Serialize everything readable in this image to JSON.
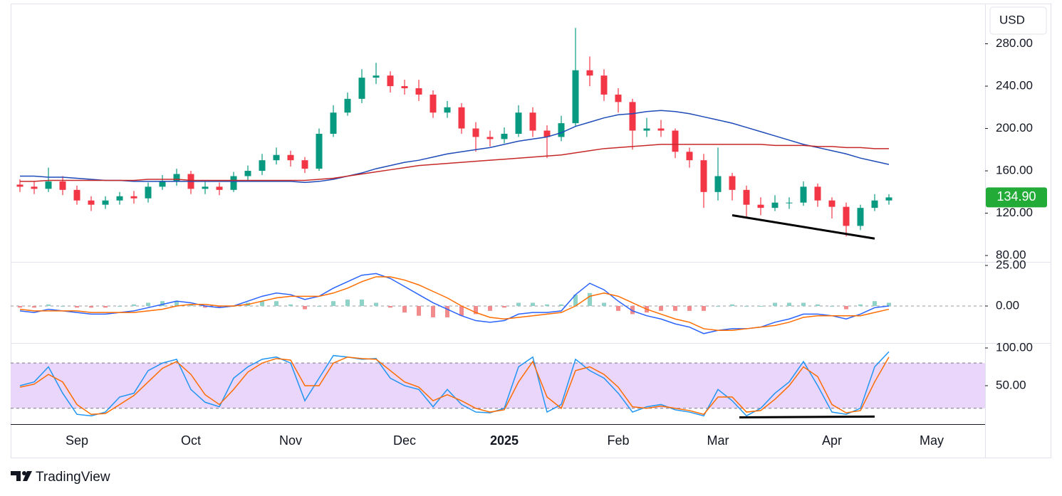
{
  "chart_data": [
    {
      "type": "candlestick",
      "currency": "USD",
      "categories": [
        null,
        null,
        null,
        null,
        null,
        "Sep",
        null,
        null,
        null,
        null,
        null,
        null,
        null,
        "Oct",
        null,
        null,
        null,
        null,
        null,
        null,
        "Nov",
        null,
        null,
        null,
        null,
        null,
        null,
        null,
        "Dec",
        null,
        null,
        null,
        null,
        null,
        null,
        "2025",
        null,
        null,
        null,
        null,
        null,
        null,
        null,
        "Feb",
        null,
        null,
        null,
        null,
        null,
        null,
        "Mar",
        null,
        null,
        null,
        null,
        null,
        null,
        null,
        "Apr",
        null,
        null,
        null,
        null,
        null,
        null,
        "May",
        null,
        null,
        null
      ],
      "open": [
        null,
        147,
        145,
        143,
        150,
        142,
        132,
        128,
        132,
        136,
        134,
        145,
        150,
        157,
        143,
        145,
        142,
        155,
        160,
        170,
        175,
        170,
        162,
        195,
        215,
        228,
        248,
        250,
        240,
        238,
        232,
        215,
        220,
        200,
        192,
        190,
        195,
        215,
        198,
        192,
        205,
        255,
        250,
        232,
        225,
        198,
        200,
        198,
        178,
        170,
        140,
        155,
        142,
        128,
        125,
        130,
        130,
        145,
        132,
        126,
        108,
        125,
        132,
        null,
        null,
        null,
        null,
        null,
        null
      ],
      "high": [
        null,
        152,
        150,
        163,
        155,
        146,
        136,
        136,
        140,
        141,
        149,
        156,
        162,
        160,
        150,
        149,
        159,
        165,
        176,
        182,
        179,
        173,
        200,
        222,
        234,
        256,
        262,
        254,
        246,
        246,
        236,
        226,
        224,
        206,
        198,
        201,
        222,
        220,
        203,
        212,
        295,
        268,
        256,
        238,
        228,
        210,
        208,
        200,
        182,
        176,
        182,
        158,
        146,
        135,
        137,
        135,
        150,
        148,
        135,
        130,
        128,
        138,
        138,
        null,
        null,
        null,
        null,
        null,
        null
      ],
      "low": [
        null,
        140,
        138,
        140,
        137,
        128,
        122,
        124,
        128,
        129,
        130,
        142,
        146,
        138,
        138,
        137,
        140,
        151,
        156,
        166,
        164,
        158,
        160,
        192,
        212,
        224,
        242,
        234,
        232,
        226,
        210,
        210,
        195,
        178,
        183,
        186,
        192,
        192,
        172,
        188,
        202,
        240,
        226,
        215,
        180,
        192,
        192,
        172,
        163,
        125,
        132,
        132,
        115,
        118,
        122,
        124,
        127,
        126,
        115,
        98,
        104,
        122,
        128,
        null,
        null,
        null,
        null,
        null,
        null
      ],
      "close": [
        null,
        145,
        143,
        150,
        142,
        132,
        128,
        132,
        136,
        134,
        145,
        150,
        157,
        143,
        145,
        142,
        155,
        160,
        170,
        175,
        170,
        162,
        195,
        215,
        228,
        248,
        250,
        240,
        238,
        232,
        215,
        220,
        200,
        192,
        190,
        195,
        215,
        198,
        192,
        205,
        255,
        250,
        232,
        225,
        198,
        200,
        198,
        178,
        170,
        140,
        155,
        142,
        128,
        125,
        130,
        130,
        145,
        132,
        126,
        108,
        125,
        132,
        134.9,
        null,
        null,
        null,
        null,
        null,
        null
      ],
      "up_color": "#089981",
      "down_color": "#f23645",
      "series": [
        {
          "color": "#1e4bb8",
          "values": [
            null,
            155,
            155,
            154,
            154,
            153,
            152,
            151,
            151,
            150,
            150,
            150,
            150,
            150,
            150,
            150,
            150,
            150,
            150,
            150,
            150,
            149,
            150,
            152,
            155,
            158,
            162,
            165,
            168,
            170,
            173,
            176,
            178,
            180,
            182,
            185,
            188,
            190,
            192,
            196,
            202,
            206,
            210,
            213,
            214,
            216,
            217,
            216,
            214,
            211,
            208,
            205,
            201,
            197,
            193,
            189,
            185,
            182,
            179,
            176,
            172,
            169,
            166,
            null,
            null,
            null,
            null,
            null,
            null
          ]
        },
        {
          "color": "#c62828",
          "values": [
            null,
            150,
            150,
            151,
            151,
            151,
            151,
            151,
            151,
            151,
            152,
            152,
            152,
            151,
            151,
            151,
            151,
            151,
            151,
            151,
            151,
            151,
            152,
            153,
            155,
            157,
            159,
            161,
            163,
            165,
            166,
            167,
            168,
            169,
            170,
            171,
            172,
            173,
            174,
            175,
            177,
            179,
            181,
            182,
            183,
            184,
            185,
            185,
            185,
            185,
            185,
            185,
            185,
            185,
            184,
            184,
            184,
            183,
            183,
            182,
            182,
            181,
            181,
            null,
            null,
            null,
            null,
            null,
            null
          ]
        }
      ],
      "ylim": [
        74,
        318
      ],
      "yticks": [
        {
          "value": 80,
          "label": "80.00"
        },
        {
          "value": 120,
          "label": "120.00"
        },
        {
          "value": 160,
          "label": "160.00"
        },
        {
          "value": 200,
          "label": "200.00"
        },
        {
          "value": 240,
          "label": "240.00"
        },
        {
          "value": 280,
          "label": "280.00"
        }
      ],
      "last_value_label": "134.90",
      "last_label_color": "#22ab37",
      "trendlines": [
        {
          "x": [
            51,
            61
          ],
          "y": [
            118,
            96
          ]
        }
      ]
    },
    {
      "type": "macd",
      "histogram": {
        "up_color": "#8fd3c8",
        "down_color": "#f28b8b",
        "values": [
          null,
          -1,
          -1,
          1,
          0,
          -1,
          -1,
          -1,
          0,
          1,
          2,
          3,
          3,
          1,
          -1,
          -1,
          0,
          2,
          3,
          3,
          1,
          -2,
          0,
          3,
          4,
          4,
          2,
          -1,
          -4,
          -6,
          -7,
          -7,
          -6,
          -5,
          -3,
          -1,
          2,
          2,
          1,
          1,
          7,
          8,
          2,
          -3,
          -5,
          -4,
          -3,
          -3,
          -3,
          -3,
          0,
          1,
          0,
          0,
          2,
          2,
          2,
          1,
          0,
          -2,
          1,
          3,
          2,
          null,
          null,
          null,
          null,
          null,
          null
        ]
      },
      "series": [
        {
          "color": "#2962ff",
          "values": [
            null,
            -3,
            -4,
            -2,
            -3,
            -4,
            -5,
            -5,
            -4,
            -3,
            -1,
            1,
            3,
            2,
            0,
            -1,
            0,
            3,
            6,
            8,
            7,
            4,
            6,
            11,
            15,
            19,
            20,
            17,
            12,
            7,
            2,
            -2,
            -6,
            -9,
            -10,
            -9,
            -5,
            -4,
            -4,
            -3,
            7,
            14,
            10,
            3,
            -3,
            -6,
            -8,
            -11,
            -13,
            -17,
            -15,
            -14,
            -14,
            -13,
            -10,
            -8,
            -5,
            -5,
            -6,
            -8,
            -5,
            -1,
            0,
            null,
            null,
            null,
            null,
            null,
            null
          ]
        },
        {
          "color": "#ff6d00",
          "values": [
            null,
            -2,
            -3,
            -3,
            -3,
            -3,
            -4,
            -4,
            -4,
            -4,
            -3,
            -2,
            0,
            1,
            1,
            0,
            0,
            1,
            3,
            5,
            6,
            6,
            6,
            8,
            11,
            15,
            18,
            18,
            16,
            13,
            9,
            5,
            0,
            -4,
            -7,
            -8,
            -7,
            -6,
            -5,
            -4,
            0,
            6,
            8,
            6,
            2,
            -2,
            -5,
            -8,
            -10,
            -14,
            -15,
            -15,
            -14,
            -13,
            -12,
            -10,
            -7,
            -6,
            -6,
            -6,
            -6,
            -4,
            -2,
            null,
            null,
            null,
            null,
            null,
            null
          ]
        }
      ],
      "ylim": [
        -22.8,
        27.2
      ],
      "yticks": [
        {
          "value": 0,
          "label": "0.00"
        },
        {
          "value": 25,
          "label": "25.00"
        }
      ],
      "zero_line": true
    },
    {
      "type": "stochastic",
      "levels": [
        20,
        80
      ],
      "band_color": "#ead5fb",
      "series": [
        {
          "color": "#2196f3",
          "values": [
            null,
            50,
            55,
            75,
            40,
            12,
            10,
            15,
            35,
            40,
            70,
            80,
            85,
            45,
            28,
            22,
            60,
            75,
            85,
            88,
            80,
            30,
            60,
            90,
            88,
            85,
            86,
            60,
            50,
            45,
            22,
            45,
            25,
            15,
            14,
            20,
            75,
            88,
            15,
            25,
            85,
            70,
            60,
            40,
            15,
            22,
            25,
            18,
            15,
            10,
            45,
            30,
            10,
            20,
            40,
            55,
            82,
            50,
            15,
            12,
            20,
            75,
            95,
            null,
            null,
            null,
            null,
            null,
            null
          ]
        },
        {
          "color": "#ff6d00",
          "values": [
            null,
            48,
            52,
            65,
            55,
            25,
            12,
            13,
            25,
            37,
            55,
            73,
            82,
            65,
            38,
            25,
            45,
            68,
            80,
            86,
            84,
            50,
            50,
            80,
            88,
            86,
            85,
            70,
            55,
            48,
            30,
            38,
            30,
            20,
            15,
            18,
            55,
            82,
            35,
            20,
            70,
            75,
            65,
            48,
            22,
            20,
            23,
            20,
            17,
            12,
            35,
            35,
            15,
            17,
            32,
            50,
            75,
            62,
            25,
            14,
            17,
            55,
            88,
            null,
            null,
            null,
            null,
            null,
            null
          ]
        }
      ],
      "ylim": [
        -1,
        106.6
      ],
      "yticks": [
        {
          "value": 50,
          "label": "50.00"
        },
        {
          "value": 100,
          "label": "100.00"
        }
      ],
      "trendlines": [
        {
          "x": [
            51.5,
            61
          ],
          "y": [
            8,
            9
          ]
        }
      ]
    }
  ],
  "brand": "TradingView"
}
